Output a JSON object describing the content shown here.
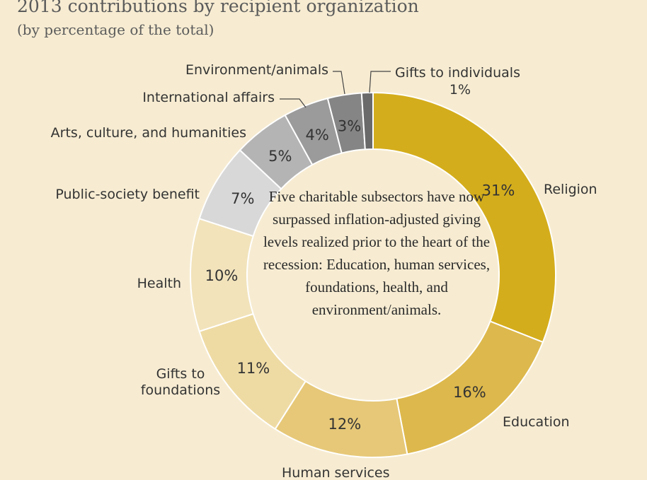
{
  "header": {
    "title": "2013 contributions by recipient organization",
    "subtitle": "(by percentage of the total)"
  },
  "center_note": "Five charitable subsectors have now surpassed inflation-adjusted giving levels realized prior to the heart of the recession: Education, human services, foundations, health, and environment/animals.",
  "chart_data": {
    "type": "pie",
    "donut": true,
    "slices": [
      {
        "label": "Religion",
        "value": 31,
        "value_label": "31%",
        "color": "#d4ad1c"
      },
      {
        "label": "Education",
        "value": 16,
        "value_label": "16%",
        "color": "#ddb84c"
      },
      {
        "label": "Human services",
        "value": 12,
        "value_label": "12%",
        "color": "#e6c878"
      },
      {
        "label": "Gifts to foundations",
        "value": 11,
        "value_label": "11%",
        "color": "#eedba4"
      },
      {
        "label": "Health",
        "value": 10,
        "value_label": "10%",
        "color": "#f2e3bb"
      },
      {
        "label": "Public-society benefit",
        "value": 7,
        "value_label": "7%",
        "color": "#d8d8d8"
      },
      {
        "label": "Arts, culture, and humanities",
        "value": 5,
        "value_label": "5%",
        "color": "#b4b4b4"
      },
      {
        "label": "International affairs",
        "value": 4,
        "value_label": "4%",
        "color": "#9b9b9b"
      },
      {
        "label": "Environment/animals",
        "value": 3,
        "value_label": "3%",
        "color": "#858585"
      },
      {
        "label": "Gifts to individuals",
        "value": 1,
        "value_label": "1%",
        "color": "#6a6a6a"
      }
    ]
  }
}
